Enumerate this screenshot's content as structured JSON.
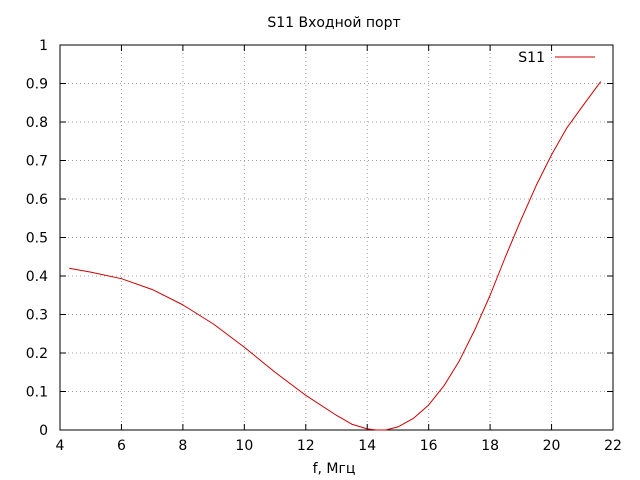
{
  "chart_data": {
    "type": "line",
    "title": "S11 Входной порт",
    "xlabel": "f, Мгц",
    "ylabel": "",
    "xlim": [
      4,
      22
    ],
    "ylim": [
      0,
      1
    ],
    "grid": true,
    "legend_position": "top-right",
    "x_ticks": [
      4,
      6,
      8,
      10,
      12,
      14,
      16,
      18,
      20,
      22
    ],
    "y_ticks": [
      0,
      0.1,
      0.2,
      0.3,
      0.4,
      0.5,
      0.6,
      0.7,
      0.8,
      0.9,
      1
    ],
    "series": [
      {
        "name": "S11",
        "color": "#cc0000",
        "points": [
          [
            4.3,
            0.42
          ],
          [
            5.0,
            0.41
          ],
          [
            6.0,
            0.393
          ],
          [
            7.0,
            0.365
          ],
          [
            8.0,
            0.325
          ],
          [
            9.0,
            0.275
          ],
          [
            10.0,
            0.215
          ],
          [
            11.0,
            0.15
          ],
          [
            12.0,
            0.09
          ],
          [
            13.0,
            0.038
          ],
          [
            13.5,
            0.015
          ],
          [
            14.0,
            0.003
          ],
          [
            14.3,
            0.0
          ],
          [
            14.6,
            0.0
          ],
          [
            15.0,
            0.008
          ],
          [
            15.5,
            0.03
          ],
          [
            16.0,
            0.065
          ],
          [
            16.5,
            0.115
          ],
          [
            17.0,
            0.18
          ],
          [
            17.5,
            0.26
          ],
          [
            18.0,
            0.35
          ],
          [
            18.5,
            0.45
          ],
          [
            19.0,
            0.545
          ],
          [
            19.5,
            0.635
          ],
          [
            20.0,
            0.715
          ],
          [
            20.5,
            0.785
          ],
          [
            21.0,
            0.84
          ],
          [
            21.6,
            0.905
          ]
        ]
      }
    ]
  }
}
